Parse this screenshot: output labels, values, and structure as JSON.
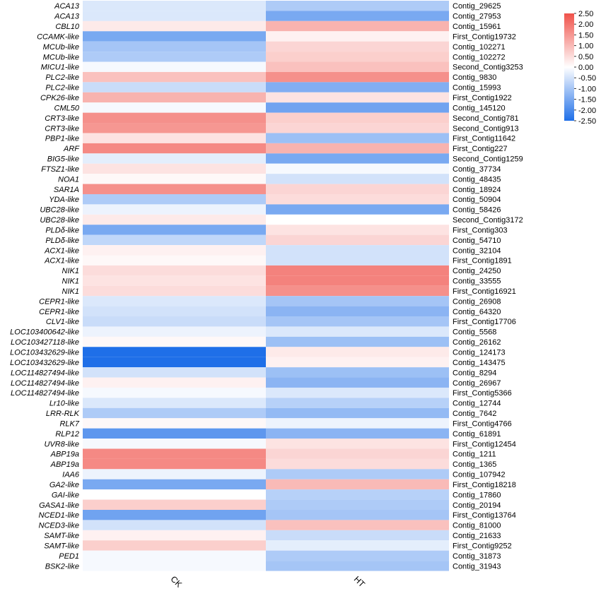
{
  "chart_data": {
    "type": "heatmap",
    "title": "",
    "xlabel": "",
    "ylabel": "",
    "columns": [
      "CK",
      "HT"
    ],
    "colorbar": {
      "min": -2.5,
      "max": 2.5,
      "low_color": "#1f6fe8",
      "mid_color": "#ffffff",
      "high_color": "#f0524a",
      "ticks": [
        "2.50",
        "2.00",
        "1.50",
        "1.00",
        "0.50",
        "0.00",
        "-0.50",
        "-1.00",
        "-1.50",
        "-2.00",
        "-2.50"
      ]
    },
    "rows": [
      {
        "gene": "ACA13",
        "contig": "Contig_29625",
        "values": [
          -0.4,
          -0.9
        ]
      },
      {
        "gene": "ACA13",
        "contig": "Contig_27953",
        "values": [
          -0.4,
          -1.5
        ]
      },
      {
        "gene": "CBL10",
        "contig": "Contig_15961",
        "values": [
          0.3,
          1.1
        ]
      },
      {
        "gene": "CCAMK-like",
        "contig": "First_Contig19732",
        "values": [
          -1.5,
          0.2
        ]
      },
      {
        "gene": "MCUb-like",
        "contig": "Contig_102271",
        "values": [
          -1.0,
          0.6
        ]
      },
      {
        "gene": "MCUb-like",
        "contig": "Contig_102272",
        "values": [
          -0.9,
          0.7
        ]
      },
      {
        "gene": "MICU1-like",
        "contig": "Second_Contig3253",
        "values": [
          -0.1,
          0.9
        ]
      },
      {
        "gene": "PLC2-like",
        "contig": "Contig_9830",
        "values": [
          0.9,
          1.6
        ]
      },
      {
        "gene": "PLC2-like",
        "contig": "Contig_15993",
        "values": [
          -0.6,
          -1.4
        ]
      },
      {
        "gene": "CPK26-like",
        "contig": "First_Contig1922",
        "values": [
          1.1,
          0.4
        ]
      },
      {
        "gene": "CML50",
        "contig": "Contig_145120",
        "values": [
          -0.1,
          -1.6
        ]
      },
      {
        "gene": "CRT3-like",
        "contig": "Second_Contig781",
        "values": [
          1.6,
          0.7
        ]
      },
      {
        "gene": "CRT3-like",
        "contig": "Second_Contig913",
        "values": [
          1.5,
          0.6
        ]
      },
      {
        "gene": "PBP1-like",
        "contig": "First_Contig11642",
        "values": [
          0.4,
          -1.1
        ]
      },
      {
        "gene": "ARF",
        "contig": "First_Contig227",
        "values": [
          1.7,
          1.1
        ]
      },
      {
        "gene": "BIG5-like",
        "contig": "Second_Contig1259",
        "values": [
          -0.3,
          -1.5
        ]
      },
      {
        "gene": "FTSZ1-like",
        "contig": "Contig_37734",
        "values": [
          0.4,
          -0.1
        ]
      },
      {
        "gene": "NOA1",
        "contig": "Contig_48435",
        "values": [
          0.1,
          -0.5
        ]
      },
      {
        "gene": "SAR1A",
        "contig": "Contig_18924",
        "values": [
          1.6,
          0.6
        ]
      },
      {
        "gene": "YDA-like",
        "contig": "Contig_50904",
        "values": [
          -0.9,
          0.5
        ]
      },
      {
        "gene": "UBC28-like",
        "contig": "Contig_58426",
        "values": [
          -0.2,
          -1.5
        ]
      },
      {
        "gene": "UBC28-like",
        "contig": "Second_Contig3172",
        "values": [
          0.3,
          0.0
        ]
      },
      {
        "gene": "PLDδ-like",
        "contig": "First_Contig303",
        "values": [
          -1.5,
          0.4
        ]
      },
      {
        "gene": "PLDδ-like",
        "contig": "Contig_54710",
        "values": [
          -0.7,
          0.6
        ]
      },
      {
        "gene": "ACX1-like",
        "contig": "Contig_32104",
        "values": [
          0.2,
          -0.5
        ]
      },
      {
        "gene": "ACX1-like",
        "contig": "First_Contig1891",
        "values": [
          0.1,
          -0.5
        ]
      },
      {
        "gene": "NIK1",
        "contig": "Contig_24250",
        "values": [
          0.5,
          1.8
        ]
      },
      {
        "gene": "NIK1",
        "contig": "Contig_33555",
        "values": [
          0.4,
          1.8
        ]
      },
      {
        "gene": "NIK1",
        "contig": "First_Contig16921",
        "values": [
          0.5,
          1.6
        ]
      },
      {
        "gene": "CEPR1-like",
        "contig": "Contig_26908",
        "values": [
          -0.4,
          -1.0
        ]
      },
      {
        "gene": "CEPR1-like",
        "contig": "Contig_64320",
        "values": [
          -0.5,
          -1.3
        ]
      },
      {
        "gene": "CLV1-like",
        "contig": "First_Contig17706",
        "values": [
          -0.6,
          -1.0
        ]
      },
      {
        "gene": "LOC103400642-like",
        "contig": "Contig_5568",
        "values": [
          -0.2,
          -0.4
        ]
      },
      {
        "gene": "LOC103427118-like",
        "contig": "Contig_26162",
        "values": [
          0.1,
          -1.1
        ]
      },
      {
        "gene": "LOC103432629-like",
        "contig": "Contig_124173",
        "values": [
          -2.5,
          0.3
        ]
      },
      {
        "gene": "LOC103432629-like",
        "contig": "Contig_143475",
        "values": [
          -2.5,
          0.2
        ]
      },
      {
        "gene": "LOC114827494-like",
        "contig": "Contig_8294",
        "values": [
          -0.5,
          -1.1
        ]
      },
      {
        "gene": "LOC114827494-like",
        "contig": "Contig_26967",
        "values": [
          0.2,
          -1.3
        ]
      },
      {
        "gene": "LOC114827494-like",
        "contig": "First_Contig5366",
        "values": [
          -0.1,
          -0.4
        ]
      },
      {
        "gene": "Lr10-like",
        "contig": "Contig_12744",
        "values": [
          -0.4,
          -0.8
        ]
      },
      {
        "gene": "LRR-RLK",
        "contig": "Contig_7642",
        "values": [
          -0.9,
          -1.2
        ]
      },
      {
        "gene": "RLK7",
        "contig": "First_Contig4766",
        "values": [
          0.1,
          -0.2
        ]
      },
      {
        "gene": "RLP12",
        "contig": "Contig_61891",
        "values": [
          -1.8,
          -1.3
        ]
      },
      {
        "gene": "UVR8-like",
        "contig": "First_Contig12454",
        "values": [
          -0.1,
          0.4
        ]
      },
      {
        "gene": "ABP19a",
        "contig": "Contig_1211",
        "values": [
          1.7,
          0.6
        ]
      },
      {
        "gene": "ABP19a",
        "contig": "Contig_1365",
        "values": [
          1.7,
          0.5
        ]
      },
      {
        "gene": "IAA6",
        "contig": "Contig_107942",
        "values": [
          -0.2,
          -0.9
        ]
      },
      {
        "gene": "GA2-like",
        "contig": "First_Contig18218",
        "values": [
          -1.5,
          1.0
        ]
      },
      {
        "gene": "GAI-like",
        "contig": "Contig_17860",
        "values": [
          0.0,
          -0.8
        ]
      },
      {
        "gene": "GASA1-like",
        "contig": "Contig_20194",
        "values": [
          0.7,
          -0.9
        ]
      },
      {
        "gene": "NCED1-like",
        "contig": "First_Contig13764",
        "values": [
          -1.6,
          -1.0
        ]
      },
      {
        "gene": "NCED3-like",
        "contig": "Contig_81000",
        "values": [
          -0.5,
          0.9
        ]
      },
      {
        "gene": "SAMT-like",
        "contig": "Contig_21633",
        "values": [
          0.2,
          -0.6
        ]
      },
      {
        "gene": "SAMT-like",
        "contig": "First_Contig9252",
        "values": [
          0.7,
          -0.3
        ]
      },
      {
        "gene": "PED1",
        "contig": "Contig_31873",
        "values": [
          -0.1,
          -0.9
        ]
      },
      {
        "gene": "BSK2-like",
        "contig": "Contig_31943",
        "values": [
          -0.1,
          -1.0
        ]
      }
    ]
  }
}
